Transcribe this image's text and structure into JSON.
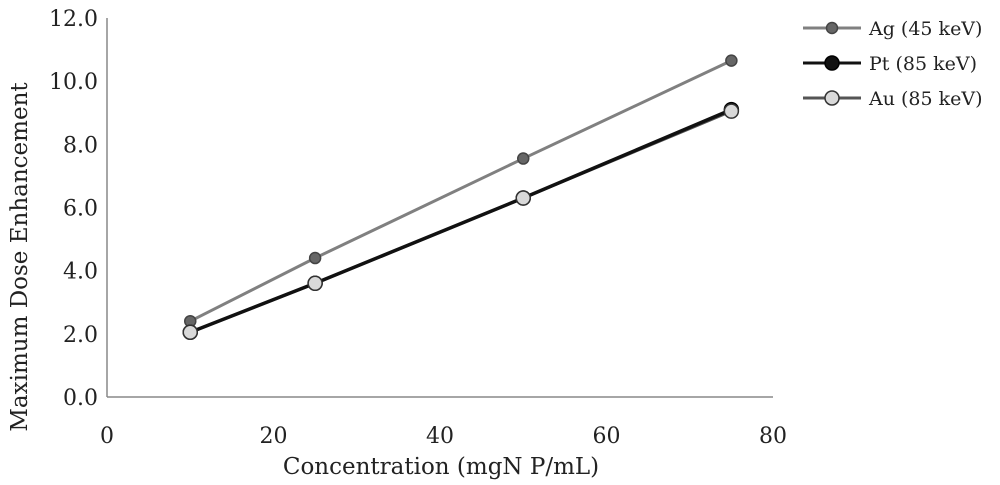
{
  "chart_data": {
    "type": "line",
    "title": "",
    "xlabel": "Concentration (mgN P/mL)",
    "ylabel": "Maximum Dose Enhancement",
    "xlim": [
      0,
      80
    ],
    "ylim": [
      0,
      12
    ],
    "x_ticks": [
      0,
      20,
      40,
      60,
      80
    ],
    "y_ticks": [
      0,
      2,
      4,
      6,
      8,
      10,
      12
    ],
    "x_tick_labels": [
      "0",
      "20",
      "40",
      "60",
      "80"
    ],
    "y_tick_labels": [
      "0.0",
      "2.0",
      "4.0",
      "6.0",
      "8.0",
      "10.0",
      "12.0"
    ],
    "grid": false,
    "legend_position": "top-right",
    "series": [
      {
        "name": "Ag (45 keV)",
        "x": [
          10,
          25,
          50,
          75
        ],
        "y": [
          2.4,
          4.4,
          7.55,
          10.65
        ],
        "line_color": "#808080",
        "marker_fill": "#666666",
        "marker_stroke": "#444444"
      },
      {
        "name": "Pt (85 keV)",
        "x": [
          10,
          25,
          50,
          75
        ],
        "y": [
          2.05,
          3.6,
          6.3,
          9.1
        ],
        "line_color": "#111111",
        "marker_fill": "#111111",
        "marker_stroke": "#000000"
      },
      {
        "name": "Au (85 keV)",
        "x": [
          10,
          25,
          50,
          75
        ],
        "y": [
          2.05,
          3.6,
          6.3,
          9.05
        ],
        "line_color": "#555555",
        "marker_fill": "#d9d9d9",
        "marker_stroke": "#333333"
      }
    ]
  }
}
